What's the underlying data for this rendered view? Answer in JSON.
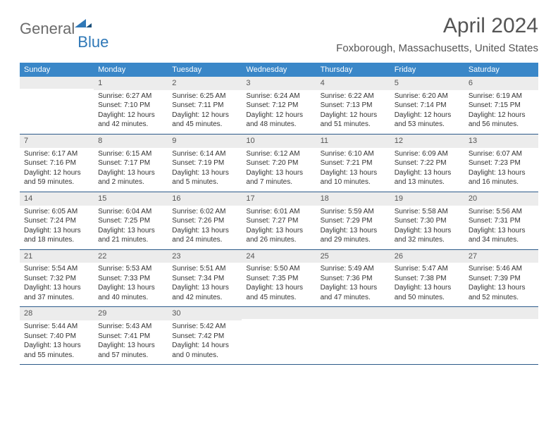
{
  "brand": {
    "part1": "General",
    "part2": "Blue"
  },
  "title": "April 2024",
  "location": "Foxborough, Massachusetts, United States",
  "colors": {
    "header_bg": "#3a87c8",
    "border": "#2c5a8a",
    "daynum_bg": "#ececec",
    "text": "#333333",
    "muted": "#555555",
    "brand_gray": "#6b6b6b",
    "brand_blue": "#2f78b7"
  },
  "day_labels": [
    "Sunday",
    "Monday",
    "Tuesday",
    "Wednesday",
    "Thursday",
    "Friday",
    "Saturday"
  ],
  "weeks": [
    [
      {
        "n": "",
        "sr": "",
        "ss": "",
        "dl1": "",
        "dl2": ""
      },
      {
        "n": "1",
        "sr": "Sunrise: 6:27 AM",
        "ss": "Sunset: 7:10 PM",
        "dl1": "Daylight: 12 hours",
        "dl2": "and 42 minutes."
      },
      {
        "n": "2",
        "sr": "Sunrise: 6:25 AM",
        "ss": "Sunset: 7:11 PM",
        "dl1": "Daylight: 12 hours",
        "dl2": "and 45 minutes."
      },
      {
        "n": "3",
        "sr": "Sunrise: 6:24 AM",
        "ss": "Sunset: 7:12 PM",
        "dl1": "Daylight: 12 hours",
        "dl2": "and 48 minutes."
      },
      {
        "n": "4",
        "sr": "Sunrise: 6:22 AM",
        "ss": "Sunset: 7:13 PM",
        "dl1": "Daylight: 12 hours",
        "dl2": "and 51 minutes."
      },
      {
        "n": "5",
        "sr": "Sunrise: 6:20 AM",
        "ss": "Sunset: 7:14 PM",
        "dl1": "Daylight: 12 hours",
        "dl2": "and 53 minutes."
      },
      {
        "n": "6",
        "sr": "Sunrise: 6:19 AM",
        "ss": "Sunset: 7:15 PM",
        "dl1": "Daylight: 12 hours",
        "dl2": "and 56 minutes."
      }
    ],
    [
      {
        "n": "7",
        "sr": "Sunrise: 6:17 AM",
        "ss": "Sunset: 7:16 PM",
        "dl1": "Daylight: 12 hours",
        "dl2": "and 59 minutes."
      },
      {
        "n": "8",
        "sr": "Sunrise: 6:15 AM",
        "ss": "Sunset: 7:17 PM",
        "dl1": "Daylight: 13 hours",
        "dl2": "and 2 minutes."
      },
      {
        "n": "9",
        "sr": "Sunrise: 6:14 AM",
        "ss": "Sunset: 7:19 PM",
        "dl1": "Daylight: 13 hours",
        "dl2": "and 5 minutes."
      },
      {
        "n": "10",
        "sr": "Sunrise: 6:12 AM",
        "ss": "Sunset: 7:20 PM",
        "dl1": "Daylight: 13 hours",
        "dl2": "and 7 minutes."
      },
      {
        "n": "11",
        "sr": "Sunrise: 6:10 AM",
        "ss": "Sunset: 7:21 PM",
        "dl1": "Daylight: 13 hours",
        "dl2": "and 10 minutes."
      },
      {
        "n": "12",
        "sr": "Sunrise: 6:09 AM",
        "ss": "Sunset: 7:22 PM",
        "dl1": "Daylight: 13 hours",
        "dl2": "and 13 minutes."
      },
      {
        "n": "13",
        "sr": "Sunrise: 6:07 AM",
        "ss": "Sunset: 7:23 PM",
        "dl1": "Daylight: 13 hours",
        "dl2": "and 16 minutes."
      }
    ],
    [
      {
        "n": "14",
        "sr": "Sunrise: 6:05 AM",
        "ss": "Sunset: 7:24 PM",
        "dl1": "Daylight: 13 hours",
        "dl2": "and 18 minutes."
      },
      {
        "n": "15",
        "sr": "Sunrise: 6:04 AM",
        "ss": "Sunset: 7:25 PM",
        "dl1": "Daylight: 13 hours",
        "dl2": "and 21 minutes."
      },
      {
        "n": "16",
        "sr": "Sunrise: 6:02 AM",
        "ss": "Sunset: 7:26 PM",
        "dl1": "Daylight: 13 hours",
        "dl2": "and 24 minutes."
      },
      {
        "n": "17",
        "sr": "Sunrise: 6:01 AM",
        "ss": "Sunset: 7:27 PM",
        "dl1": "Daylight: 13 hours",
        "dl2": "and 26 minutes."
      },
      {
        "n": "18",
        "sr": "Sunrise: 5:59 AM",
        "ss": "Sunset: 7:29 PM",
        "dl1": "Daylight: 13 hours",
        "dl2": "and 29 minutes."
      },
      {
        "n": "19",
        "sr": "Sunrise: 5:58 AM",
        "ss": "Sunset: 7:30 PM",
        "dl1": "Daylight: 13 hours",
        "dl2": "and 32 minutes."
      },
      {
        "n": "20",
        "sr": "Sunrise: 5:56 AM",
        "ss": "Sunset: 7:31 PM",
        "dl1": "Daylight: 13 hours",
        "dl2": "and 34 minutes."
      }
    ],
    [
      {
        "n": "21",
        "sr": "Sunrise: 5:54 AM",
        "ss": "Sunset: 7:32 PM",
        "dl1": "Daylight: 13 hours",
        "dl2": "and 37 minutes."
      },
      {
        "n": "22",
        "sr": "Sunrise: 5:53 AM",
        "ss": "Sunset: 7:33 PM",
        "dl1": "Daylight: 13 hours",
        "dl2": "and 40 minutes."
      },
      {
        "n": "23",
        "sr": "Sunrise: 5:51 AM",
        "ss": "Sunset: 7:34 PM",
        "dl1": "Daylight: 13 hours",
        "dl2": "and 42 minutes."
      },
      {
        "n": "24",
        "sr": "Sunrise: 5:50 AM",
        "ss": "Sunset: 7:35 PM",
        "dl1": "Daylight: 13 hours",
        "dl2": "and 45 minutes."
      },
      {
        "n": "25",
        "sr": "Sunrise: 5:49 AM",
        "ss": "Sunset: 7:36 PM",
        "dl1": "Daylight: 13 hours",
        "dl2": "and 47 minutes."
      },
      {
        "n": "26",
        "sr": "Sunrise: 5:47 AM",
        "ss": "Sunset: 7:38 PM",
        "dl1": "Daylight: 13 hours",
        "dl2": "and 50 minutes."
      },
      {
        "n": "27",
        "sr": "Sunrise: 5:46 AM",
        "ss": "Sunset: 7:39 PM",
        "dl1": "Daylight: 13 hours",
        "dl2": "and 52 minutes."
      }
    ],
    [
      {
        "n": "28",
        "sr": "Sunrise: 5:44 AM",
        "ss": "Sunset: 7:40 PM",
        "dl1": "Daylight: 13 hours",
        "dl2": "and 55 minutes."
      },
      {
        "n": "29",
        "sr": "Sunrise: 5:43 AM",
        "ss": "Sunset: 7:41 PM",
        "dl1": "Daylight: 13 hours",
        "dl2": "and 57 minutes."
      },
      {
        "n": "30",
        "sr": "Sunrise: 5:42 AM",
        "ss": "Sunset: 7:42 PM",
        "dl1": "Daylight: 14 hours",
        "dl2": "and 0 minutes."
      },
      {
        "n": "",
        "sr": "",
        "ss": "",
        "dl1": "",
        "dl2": ""
      },
      {
        "n": "",
        "sr": "",
        "ss": "",
        "dl1": "",
        "dl2": ""
      },
      {
        "n": "",
        "sr": "",
        "ss": "",
        "dl1": "",
        "dl2": ""
      },
      {
        "n": "",
        "sr": "",
        "ss": "",
        "dl1": "",
        "dl2": ""
      }
    ]
  ]
}
